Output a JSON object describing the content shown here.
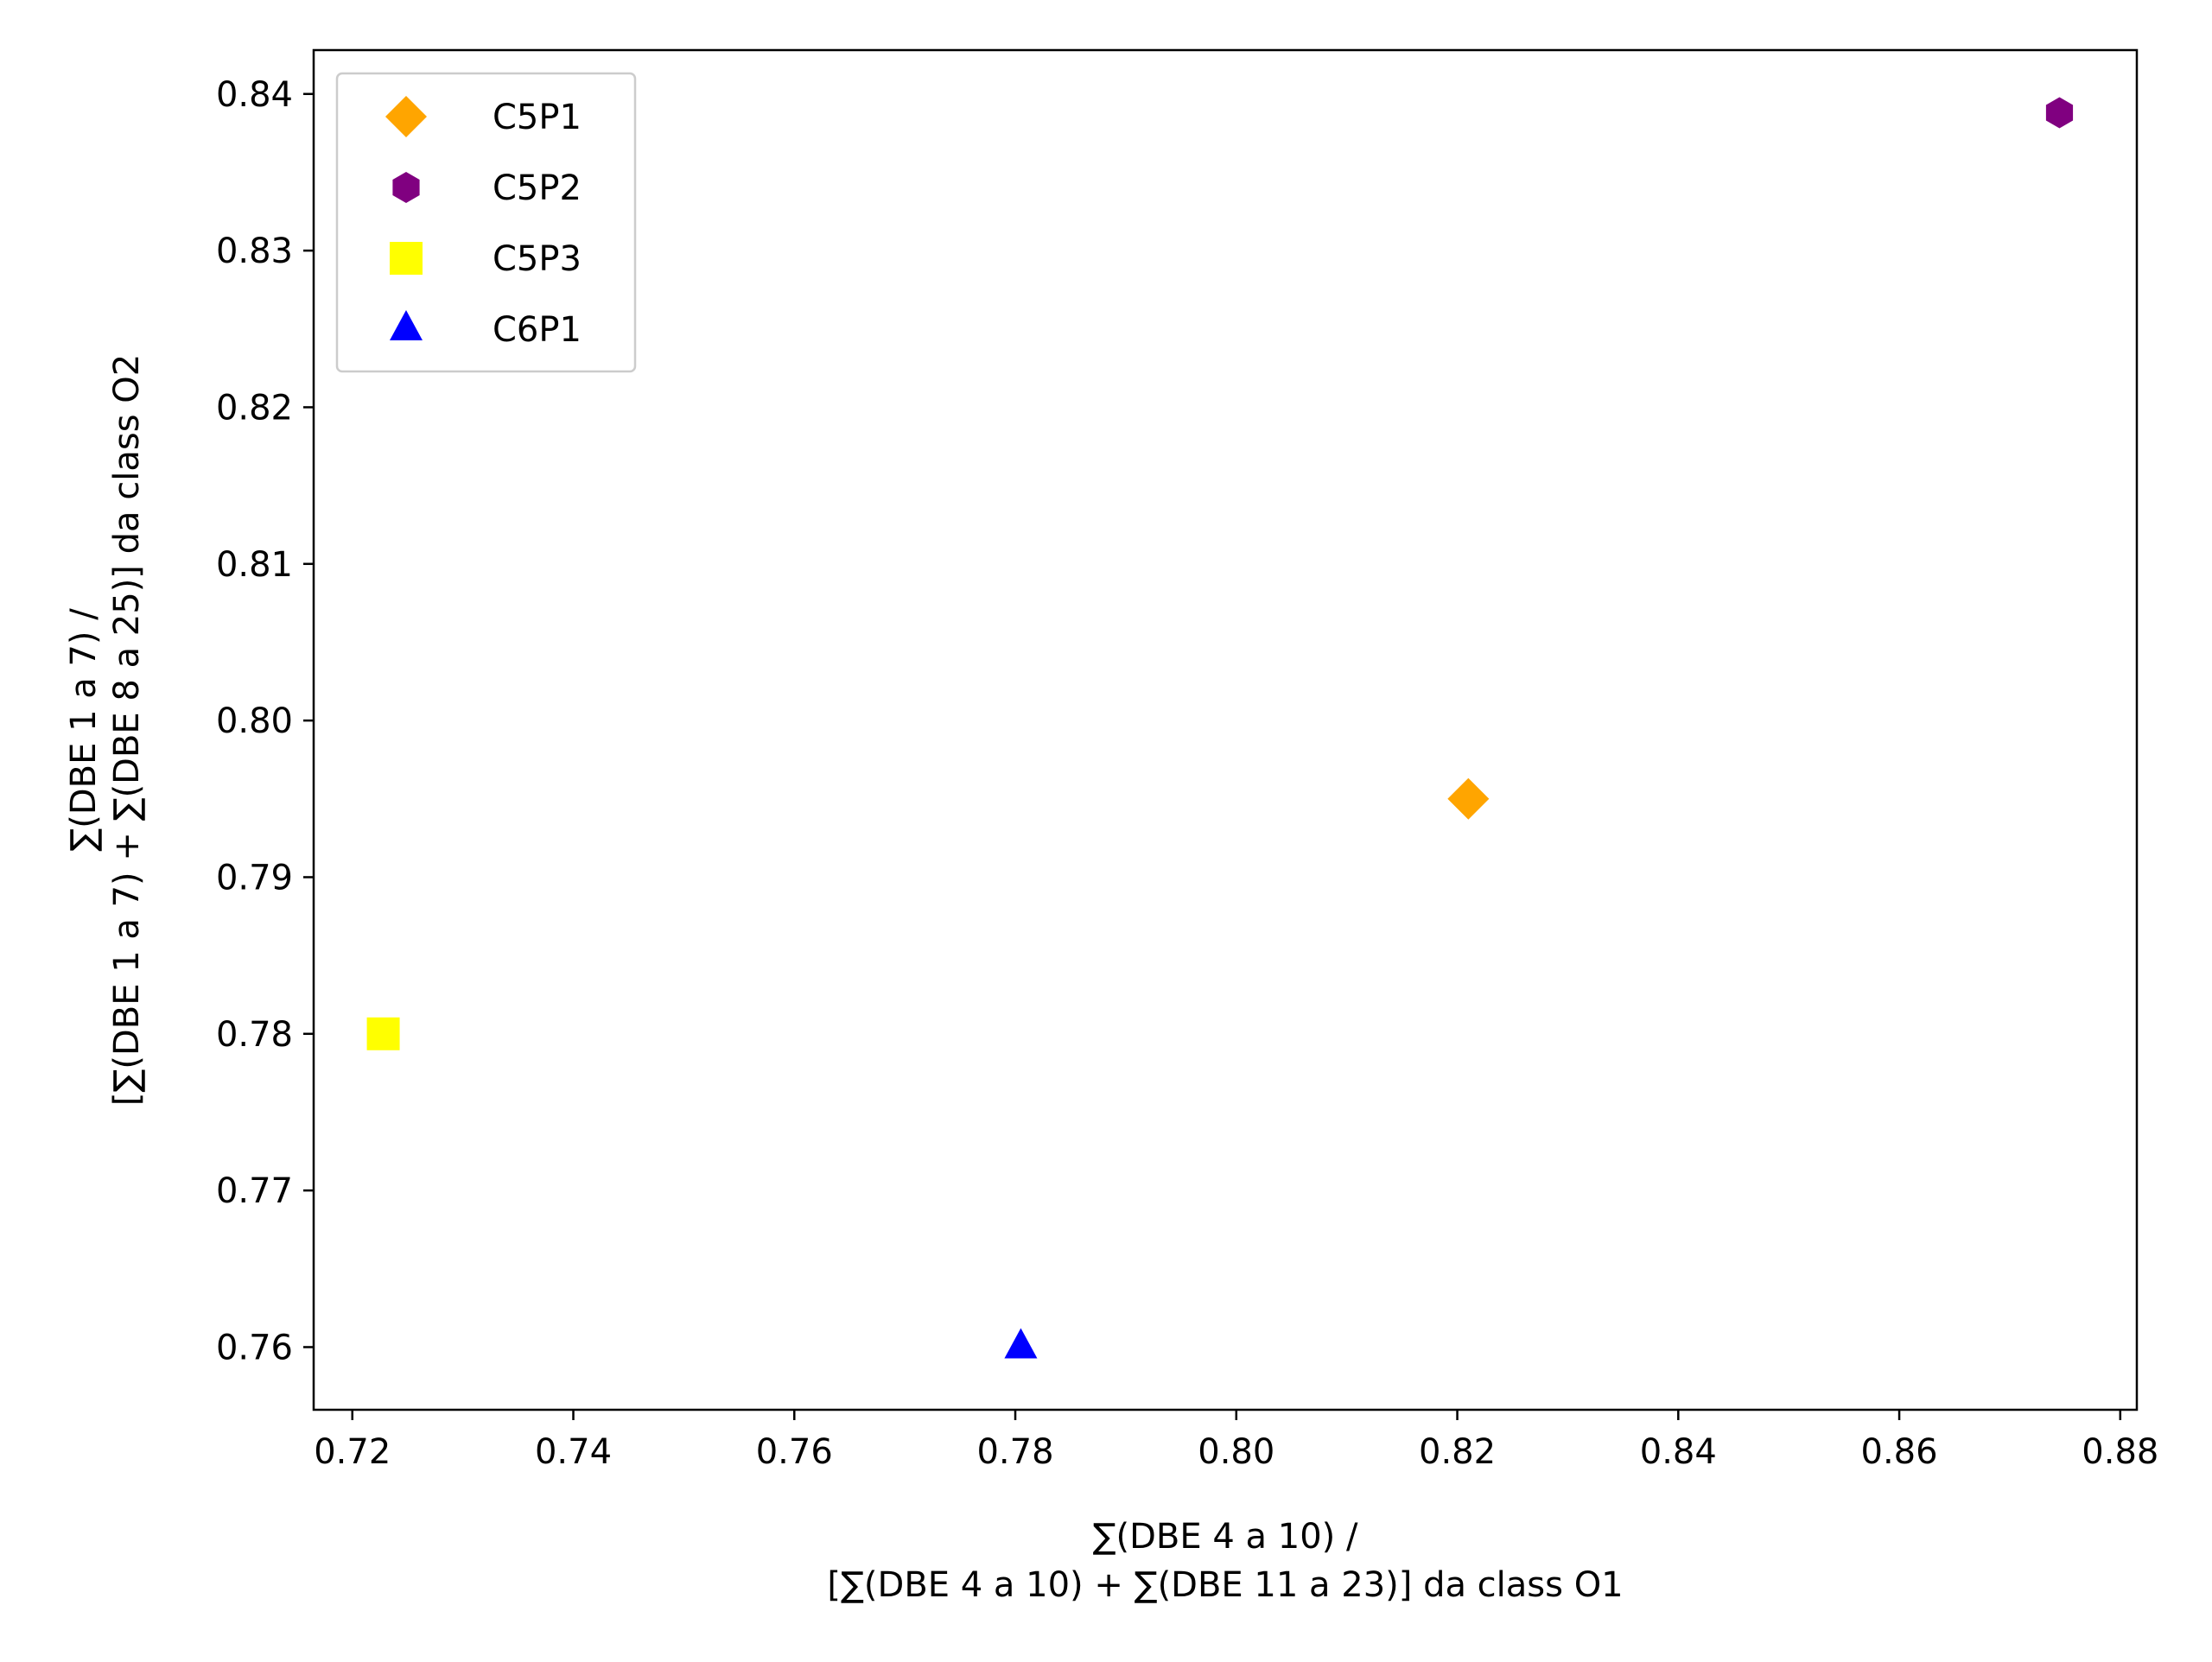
{
  "chart_data": {
    "type": "scatter",
    "xlabel": [
      "∑(DBE 4 a 10) /",
      "[∑(DBE 4 a 10) + ∑(DBE 11 a 23)] da class O1"
    ],
    "ylabel": [
      "∑(DBE 1 a 7) /",
      "[∑(DBE 1 a 7) + ∑(DBE 8 a 25)] da class O2"
    ],
    "xlim": [
      0.7165,
      0.8815
    ],
    "ylim": [
      0.756,
      0.8428
    ],
    "xticks": [
      "0.72",
      "0.74",
      "0.76",
      "0.78",
      "0.80",
      "0.82",
      "0.84",
      "0.86",
      "0.88"
    ],
    "yticks": [
      "0.76",
      "0.77",
      "0.78",
      "0.79",
      "0.80",
      "0.81",
      "0.82",
      "0.83",
      "0.84"
    ],
    "grid": false,
    "legend_position": "upper left",
    "series": [
      {
        "name": "C5P1",
        "marker": "diamond",
        "color": "#FFA500",
        "points": [
          {
            "x": 0.821,
            "y": 0.795
          }
        ]
      },
      {
        "name": "C5P2",
        "marker": "hexagon",
        "color": "#800080",
        "points": [
          {
            "x": 0.8745,
            "y": 0.8388
          }
        ]
      },
      {
        "name": "C5P3",
        "marker": "square",
        "color": "#FFFF00",
        "points": [
          {
            "x": 0.7228,
            "y": 0.78
          }
        ]
      },
      {
        "name": "C6P1",
        "marker": "triangle",
        "color": "#0000FF",
        "points": [
          {
            "x": 0.7805,
            "y": 0.76
          }
        ]
      }
    ]
  }
}
